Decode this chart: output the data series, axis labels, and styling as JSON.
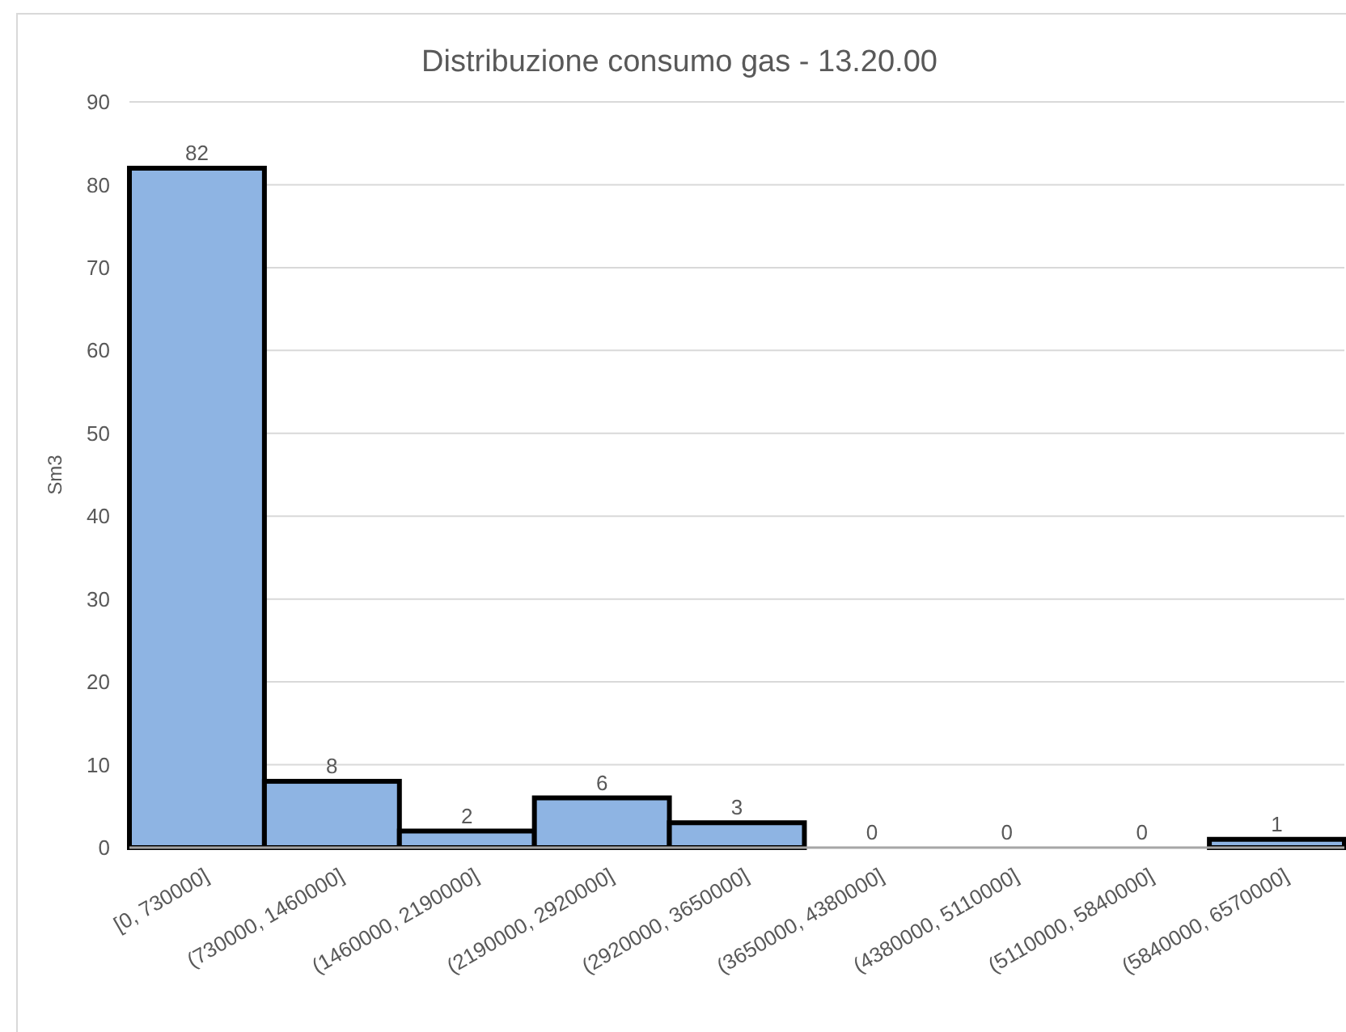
{
  "chart_data": {
    "type": "bar",
    "title": "Distribuzione consumo gas - 13.20.00",
    "ylabel": "Sm3",
    "categories": [
      "[0, 730000]",
      "(730000, 1460000]",
      "(1460000, 2190000]",
      "(2190000, 2920000]",
      "(2920000, 3650000]",
      "(3650000, 4380000]",
      "(4380000, 5110000]",
      "(5110000, 5840000]",
      "(5840000, 6570000]"
    ],
    "values": [
      82,
      8,
      2,
      6,
      3,
      0,
      0,
      0,
      1
    ],
    "color": "#8eb4e3",
    "ylim": [
      0,
      90
    ],
    "yticks": [
      0,
      10,
      20,
      30,
      40,
      50,
      60,
      70,
      80,
      90
    ],
    "grid": "y",
    "data_labels": true
  }
}
